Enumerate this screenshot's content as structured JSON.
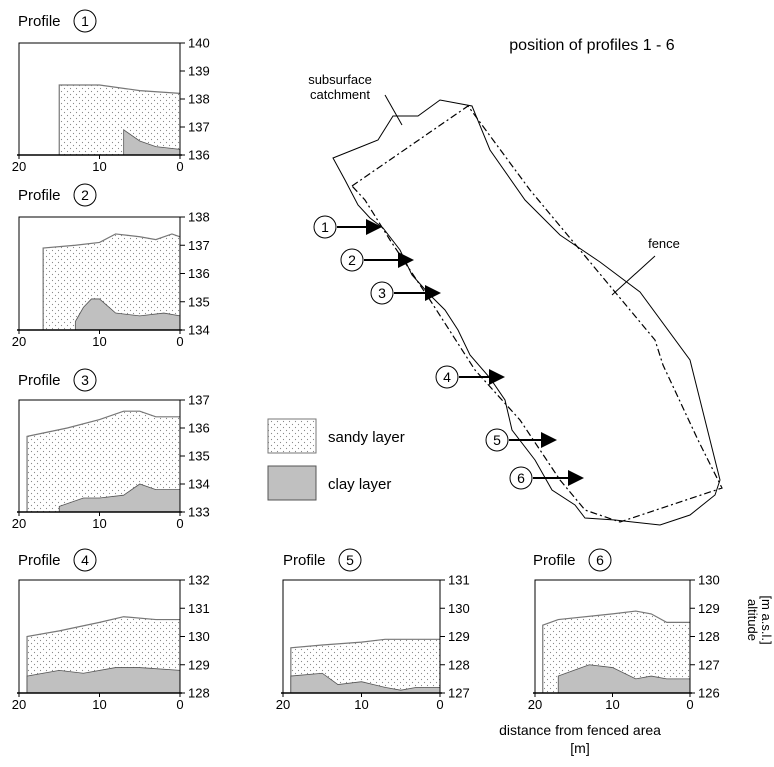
{
  "profile_word": "Profile",
  "map": {
    "title": "position of profiles 1 - 6",
    "catchment_label_1": "subsurface",
    "catchment_label_2": "catchment",
    "fence_label": "fence"
  },
  "legend": {
    "sandy": "sandy layer",
    "clay": "clay layer"
  },
  "axis": {
    "altitude_1": "altitude",
    "altitude_2": "[m a.s.l.]",
    "distance_1": "distance from fenced area",
    "distance_2": "[m]"
  },
  "colors": {
    "clay_fill": "#c0c0c0",
    "sand_fill": "#ffffff",
    "sand_dots": "#888888",
    "line": "#000000",
    "surface_line": "#777777"
  },
  "chart_data": [
    {
      "type": "area",
      "number": "1",
      "xlim": [
        20,
        0
      ],
      "ylim": [
        136,
        140
      ],
      "x_ticks": [
        "20",
        "10",
        "0"
      ],
      "y_ticks": [
        "136",
        "137",
        "138",
        "139",
        "140"
      ],
      "sand_top": [
        [
          15,
          138.5
        ],
        [
          10,
          138.5
        ],
        [
          5,
          138.3
        ],
        [
          0,
          138.2
        ]
      ],
      "clay_top": [
        [
          7,
          136.9
        ],
        [
          5,
          136.5
        ],
        [
          3,
          136.3
        ],
        [
          0,
          136.2
        ]
      ]
    },
    {
      "type": "area",
      "number": "2",
      "xlim": [
        20,
        0
      ],
      "ylim": [
        134,
        138
      ],
      "x_ticks": [
        "20",
        "10",
        "0"
      ],
      "y_ticks": [
        "134",
        "135",
        "136",
        "137",
        "138"
      ],
      "sand_top": [
        [
          17,
          136.9
        ],
        [
          13,
          137.0
        ],
        [
          10,
          137.1
        ],
        [
          8,
          137.4
        ],
        [
          5,
          137.3
        ],
        [
          3,
          137.2
        ],
        [
          1,
          137.4
        ],
        [
          0,
          137.3
        ]
      ],
      "clay_top": [
        [
          13,
          134.3
        ],
        [
          12,
          134.8
        ],
        [
          11,
          135.1
        ],
        [
          10,
          135.1
        ],
        [
          8,
          134.6
        ],
        [
          5,
          134.5
        ],
        [
          2,
          134.6
        ],
        [
          0,
          134.5
        ]
      ]
    },
    {
      "type": "area",
      "number": "3",
      "xlim": [
        20,
        0
      ],
      "ylim": [
        133,
        137
      ],
      "x_ticks": [
        "20",
        "10",
        "0"
      ],
      "y_ticks": [
        "133",
        "134",
        "135",
        "136",
        "137"
      ],
      "sand_top": [
        [
          19,
          135.7
        ],
        [
          14,
          136.0
        ],
        [
          10,
          136.3
        ],
        [
          7,
          136.6
        ],
        [
          5,
          136.6
        ],
        [
          3,
          136.4
        ],
        [
          0,
          136.4
        ]
      ],
      "clay_top": [
        [
          15,
          133.2
        ],
        [
          12,
          133.5
        ],
        [
          10,
          133.5
        ],
        [
          7,
          133.6
        ],
        [
          5,
          134.0
        ],
        [
          3,
          133.8
        ],
        [
          0,
          133.8
        ]
      ]
    },
    {
      "type": "area",
      "number": "4",
      "xlim": [
        20,
        0
      ],
      "ylim": [
        128,
        132
      ],
      "x_ticks": [
        "20",
        "10",
        "0"
      ],
      "y_ticks": [
        "128",
        "129",
        "130",
        "131",
        "132"
      ],
      "sand_top": [
        [
          19,
          130.0
        ],
        [
          15,
          130.2
        ],
        [
          10,
          130.5
        ],
        [
          7,
          130.7
        ],
        [
          3,
          130.6
        ],
        [
          0,
          130.6
        ]
      ],
      "clay_top": [
        [
          19,
          128.6
        ],
        [
          15,
          128.8
        ],
        [
          12,
          128.7
        ],
        [
          8,
          128.9
        ],
        [
          5,
          128.9
        ],
        [
          0,
          128.8
        ]
      ]
    },
    {
      "type": "area",
      "number": "5",
      "xlim": [
        20,
        0
      ],
      "ylim": [
        127,
        131
      ],
      "x_ticks": [
        "20",
        "10",
        "0"
      ],
      "y_ticks": [
        "127",
        "128",
        "129",
        "130",
        "131"
      ],
      "sand_top": [
        [
          19,
          128.6
        ],
        [
          15,
          128.7
        ],
        [
          10,
          128.8
        ],
        [
          7,
          128.9
        ],
        [
          3,
          128.9
        ],
        [
          0,
          128.9
        ]
      ],
      "clay_top": [
        [
          19,
          127.6
        ],
        [
          15,
          127.7
        ],
        [
          13,
          127.3
        ],
        [
          10,
          127.4
        ],
        [
          7,
          127.2
        ],
        [
          5,
          127.1
        ],
        [
          3,
          127.2
        ],
        [
          0,
          127.2
        ]
      ]
    },
    {
      "type": "area",
      "number": "6",
      "xlim": [
        20,
        0
      ],
      "ylim": [
        126,
        130
      ],
      "x_ticks": [
        "20",
        "10",
        "0"
      ],
      "y_ticks": [
        "126",
        "127",
        "128",
        "129",
        "130"
      ],
      "sand_top": [
        [
          19,
          128.4
        ],
        [
          17,
          128.6
        ],
        [
          10,
          128.8
        ],
        [
          7,
          128.9
        ],
        [
          5,
          128.8
        ],
        [
          3,
          128.5
        ],
        [
          0,
          128.5
        ]
      ],
      "clay_top": [
        [
          17,
          126.6
        ],
        [
          15,
          126.8
        ],
        [
          13,
          127.0
        ],
        [
          10,
          126.9
        ],
        [
          7,
          126.5
        ],
        [
          5,
          126.6
        ],
        [
          3,
          126.5
        ],
        [
          0,
          126.5
        ]
      ]
    }
  ],
  "map_markers": [
    "1",
    "2",
    "3",
    "4",
    "5",
    "6"
  ]
}
